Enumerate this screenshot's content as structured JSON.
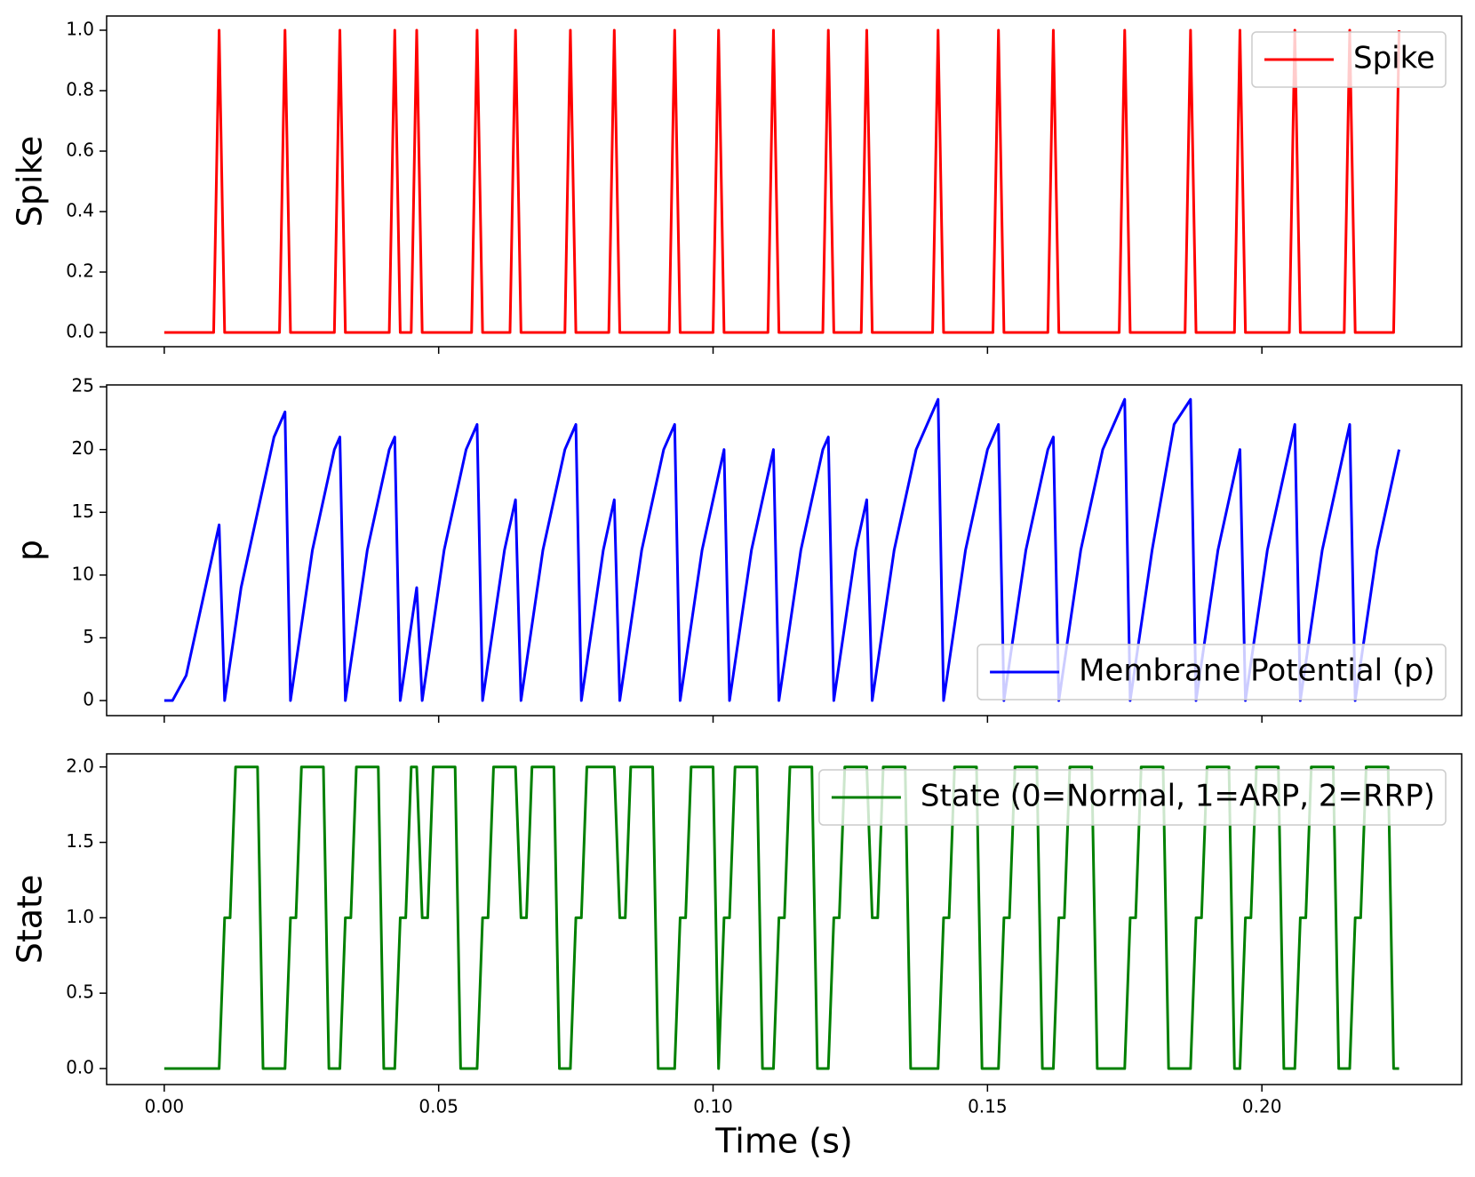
{
  "chart_data": [
    {
      "type": "line",
      "ylabel": "Spike",
      "xlim": [
        -0.0105,
        0.2364
      ],
      "ylim": [
        -0.047,
        1.047
      ],
      "yticks": [
        {
          "value": 0,
          "label": "0.0"
        },
        {
          "value": 0.2,
          "label": "0.2"
        },
        {
          "value": 0.4,
          "label": "0.4"
        },
        {
          "value": 0.6,
          "label": "0.6"
        },
        {
          "value": 0.8,
          "label": "0.8"
        },
        {
          "value": 1,
          "label": "1.0"
        }
      ],
      "xticks": [
        0,
        0.05,
        0.1,
        0.15,
        0.2
      ],
      "xticklabels": false,
      "legend": "upper right",
      "series": [
        {
          "name": "Spike",
          "color": "#ff0000",
          "x": [
            0,
            0.009,
            0.01,
            0.011,
            0.021,
            0.022,
            0.023,
            0.031,
            0.032,
            0.033,
            0.041,
            0.042,
            0.043,
            0.045,
            0.046,
            0.047,
            0.056,
            0.057,
            0.058,
            0.063,
            0.064,
            0.065,
            0.073,
            0.074,
            0.075,
            0.081,
            0.082,
            0.083,
            0.092,
            0.093,
            0.094,
            0.1,
            0.101,
            0.102,
            0.11,
            0.111,
            0.112,
            0.12,
            0.121,
            0.122,
            0.127,
            0.128,
            0.129,
            0.14,
            0.141,
            0.142,
            0.151,
            0.152,
            0.153,
            0.161,
            0.162,
            0.163,
            0.174,
            0.175,
            0.176,
            0.186,
            0.187,
            0.188,
            0.195,
            0.196,
            0.197,
            0.205,
            0.206,
            0.207,
            0.215,
            0.216,
            0.217,
            0.224,
            0.225
          ],
          "values": [
            0,
            0,
            1,
            0,
            0,
            1,
            0,
            0,
            1,
            0,
            0,
            1,
            0,
            0,
            1,
            0,
            0,
            1,
            0,
            0,
            1,
            0,
            0,
            1,
            0,
            0,
            1,
            0,
            0,
            1,
            0,
            0,
            1,
            0,
            0,
            1,
            0,
            0,
            1,
            0,
            0,
            1,
            0,
            0,
            1,
            0,
            0,
            1,
            0,
            0,
            1,
            0,
            0,
            1,
            0,
            0,
            1,
            0,
            0,
            1,
            0,
            0,
            1,
            0,
            0,
            1,
            0,
            0,
            1
          ]
        }
      ]
    },
    {
      "type": "line",
      "ylabel": "p",
      "xlim": [
        -0.0105,
        0.2364
      ],
      "ylim": [
        -1.2,
        25.15
      ],
      "yticks": [
        0,
        5,
        10,
        15,
        20,
        25
      ],
      "xticks": [
        0,
        0.05,
        0.1,
        0.15,
        0.2
      ],
      "xticklabels": false,
      "legend": "lower right",
      "series": [
        {
          "name": "Membrane Potential (p)",
          "color": "#0000ff",
          "x": [
            0,
            0.0015,
            0.004,
            0.01,
            0.011,
            0.014,
            0.02,
            0.022,
            0.023,
            0.027,
            0.031,
            0.032,
            0.033,
            0.037,
            0.041,
            0.042,
            0.043,
            0.046,
            0.047,
            0.051,
            0.055,
            0.057,
            0.058,
            0.062,
            0.064,
            0.065,
            0.069,
            0.073,
            0.075,
            0.076,
            0.08,
            0.082,
            0.083,
            0.087,
            0.091,
            0.093,
            0.094,
            0.098,
            0.102,
            0.103,
            0.107,
            0.111,
            0.112,
            0.116,
            0.12,
            0.121,
            0.122,
            0.126,
            0.128,
            0.129,
            0.133,
            0.137,
            0.141,
            0.142,
            0.146,
            0.15,
            0.152,
            0.153,
            0.157,
            0.161,
            0.162,
            0.163,
            0.167,
            0.171,
            0.175,
            0.176,
            0.18,
            0.184,
            0.187,
            0.188,
            0.192,
            0.196,
            0.197,
            0.201,
            0.206,
            0.207,
            0.211,
            0.216,
            0.217,
            0.221,
            0.225
          ],
          "values": [
            0,
            0,
            2,
            14,
            0,
            9,
            21,
            23,
            0,
            12,
            20,
            21,
            0,
            12,
            20,
            21,
            0,
            9,
            0,
            12,
            20,
            22,
            0,
            12,
            16,
            0,
            12,
            20,
            22,
            0,
            12,
            16,
            0,
            12,
            20,
            22,
            0,
            12,
            20,
            0,
            12,
            20,
            0,
            12,
            20,
            21,
            0,
            12,
            16,
            0,
            12,
            20,
            24,
            0,
            12,
            20,
            22,
            0,
            12,
            20,
            21,
            0,
            12,
            20,
            24,
            0,
            12,
            22,
            24,
            0,
            12,
            20,
            0,
            12,
            22,
            0,
            12,
            22,
            0,
            12,
            20
          ]
        }
      ]
    },
    {
      "type": "line",
      "ylabel": "State",
      "xlabel": "Time (s)",
      "xlim": [
        -0.0105,
        0.2364
      ],
      "ylim": [
        -0.106,
        2.087
      ],
      "yticks": [
        {
          "value": 0,
          "label": "0.0"
        },
        {
          "value": 0.5,
          "label": "0.5"
        },
        {
          "value": 1,
          "label": "1.0"
        },
        {
          "value": 1.5,
          "label": "1.5"
        },
        {
          "value": 2,
          "label": "2.0"
        }
      ],
      "xticks": [
        {
          "value": 0,
          "label": "0.00"
        },
        {
          "value": 0.05,
          "label": "0.05"
        },
        {
          "value": 0.1,
          "label": "0.10"
        },
        {
          "value": 0.15,
          "label": "0.15"
        },
        {
          "value": 0.2,
          "label": "0.20"
        }
      ],
      "xticklabels": true,
      "legend": "upper right",
      "series": [
        {
          "name": "State (0=Normal, 1=ARP, 2=RRP)",
          "color": "#008000",
          "x": [
            0,
            0.01,
            0.011,
            0.012,
            0.013,
            0.017,
            0.018,
            0.022,
            0.023,
            0.024,
            0.025,
            0.029,
            0.03,
            0.032,
            0.033,
            0.034,
            0.035,
            0.039,
            0.04,
            0.042,
            0.043,
            0.044,
            0.045,
            0.046,
            0.047,
            0.048,
            0.049,
            0.053,
            0.054,
            0.057,
            0.058,
            0.059,
            0.06,
            0.064,
            0.065,
            0.066,
            0.067,
            0.071,
            0.072,
            0.074,
            0.075,
            0.076,
            0.077,
            0.082,
            0.083,
            0.084,
            0.085,
            0.089,
            0.09,
            0.093,
            0.094,
            0.095,
            0.096,
            0.1,
            0.101,
            0.102,
            0.103,
            0.104,
            0.108,
            0.109,
            0.111,
            0.112,
            0.113,
            0.114,
            0.118,
            0.119,
            0.121,
            0.122,
            0.123,
            0.124,
            0.128,
            0.129,
            0.13,
            0.131,
            0.135,
            0.136,
            0.141,
            0.142,
            0.143,
            0.144,
            0.148,
            0.149,
            0.152,
            0.153,
            0.154,
            0.155,
            0.159,
            0.16,
            0.162,
            0.163,
            0.164,
            0.165,
            0.169,
            0.17,
            0.175,
            0.176,
            0.177,
            0.178,
            0.182,
            0.183,
            0.187,
            0.188,
            0.189,
            0.19,
            0.194,
            0.195,
            0.196,
            0.197,
            0.198,
            0.199,
            0.203,
            0.204,
            0.206,
            0.207,
            0.208,
            0.209,
            0.213,
            0.214,
            0.216,
            0.217,
            0.218,
            0.219,
            0.223,
            0.224,
            0.225
          ],
          "values": [
            0,
            0,
            1,
            1,
            2,
            2,
            0,
            0,
            1,
            1,
            2,
            2,
            0,
            0,
            1,
            1,
            2,
            2,
            0,
            0,
            1,
            1,
            2,
            2,
            1,
            1,
            2,
            2,
            0,
            0,
            1,
            1,
            2,
            2,
            1,
            1,
            2,
            2,
            0,
            0,
            1,
            1,
            2,
            2,
            1,
            1,
            2,
            2,
            0,
            0,
            1,
            1,
            2,
            2,
            0,
            1,
            1,
            2,
            2,
            0,
            0,
            1,
            1,
            2,
            2,
            0,
            0,
            1,
            1,
            2,
            2,
            1,
            1,
            2,
            2,
            0,
            0,
            1,
            1,
            2,
            2,
            0,
            0,
            1,
            1,
            2,
            2,
            0,
            0,
            1,
            1,
            2,
            2,
            0,
            0,
            1,
            1,
            2,
            2,
            0,
            0,
            1,
            1,
            2,
            2,
            0,
            0,
            1,
            1,
            2,
            2,
            0,
            0,
            1,
            1,
            2,
            2,
            0,
            0,
            1,
            1,
            2,
            2,
            0,
            0
          ]
        }
      ]
    }
  ]
}
